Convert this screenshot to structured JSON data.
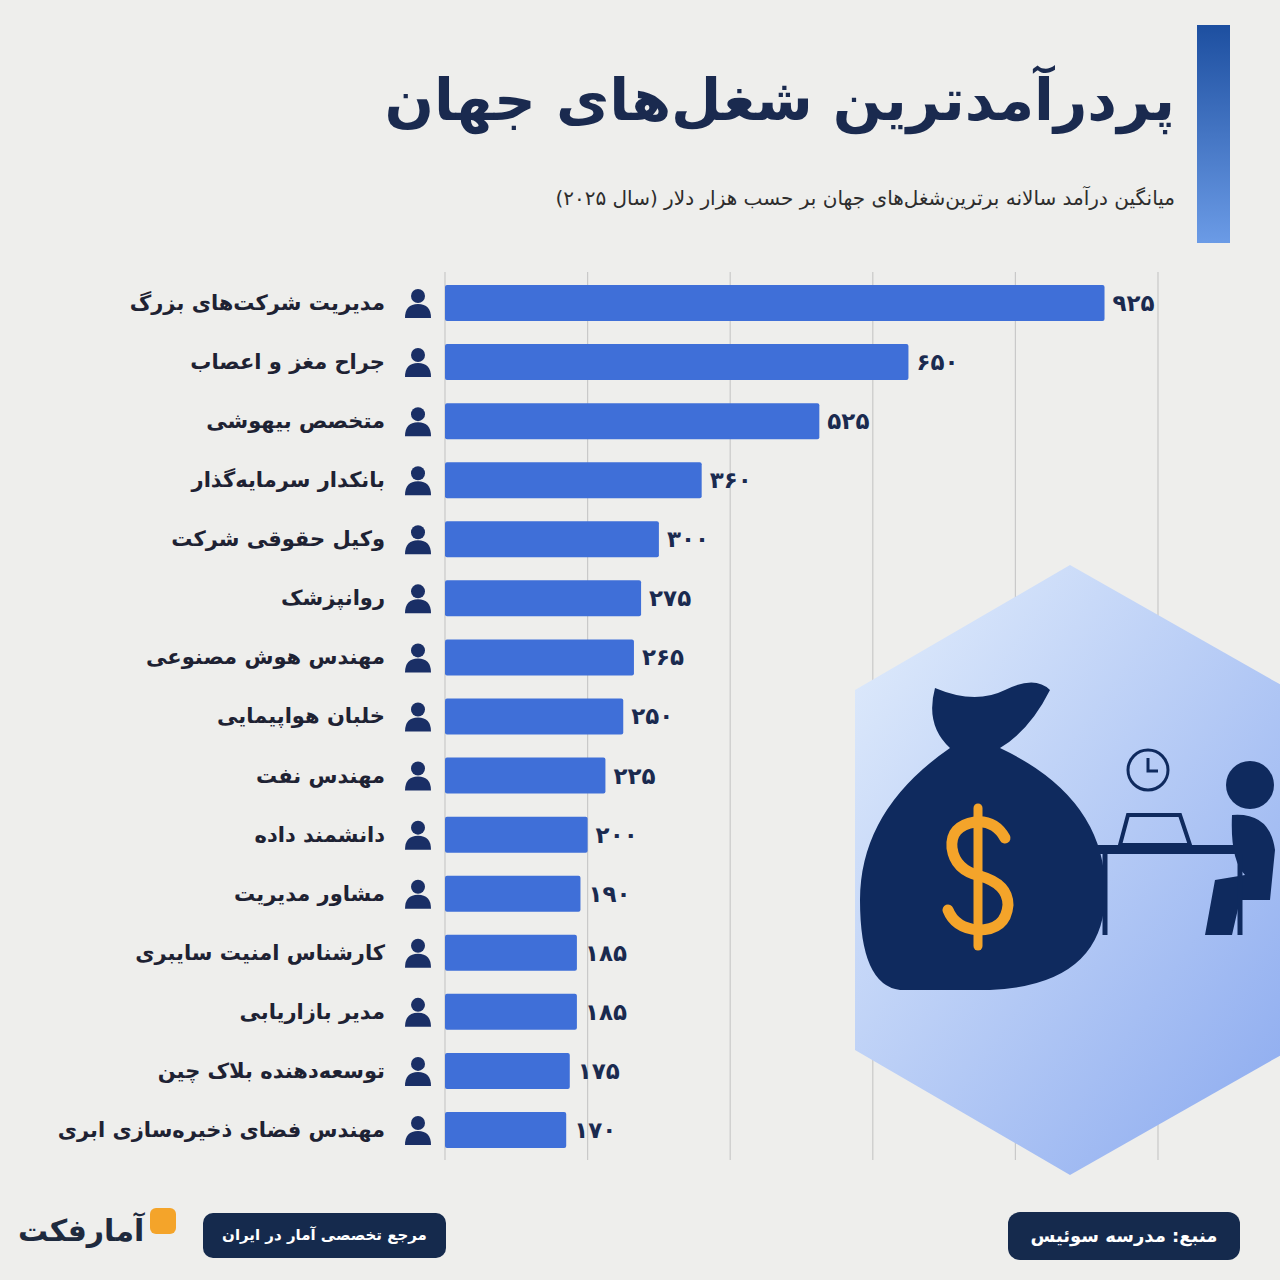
{
  "chart_data": {
    "type": "bar",
    "orientation": "horizontal",
    "title": "پردرآمدترین شغل‌های جهان",
    "subtitle": "میانگین درآمد سالانه برترین‌شغل‌های جهان بر حسب هزار دلار (سال ۲۰۲۵)",
    "categories": [
      "مدیریت شرکت‌های بزرگ",
      "جراح مغز و اعصاب",
      "متخصص بیهوشی",
      "بانکدار سرمایه‌گذار",
      "وکیل حقوقی شرکت",
      "روانپزشک",
      "مهندس هوش مصنوعی",
      "خلبان هواپیمایی",
      "مهندس نفت",
      "دانشمند داده",
      "مشاور مدیریت",
      "کارشناس امنیت سایبری",
      "مدیر بازاریابی",
      "توسعه‌دهنده بلاک چین",
      "مهندس فضای ذخیره‌سازی ابری"
    ],
    "values": [
      925,
      650,
      525,
      360,
      300,
      275,
      265,
      250,
      225,
      200,
      190,
      185,
      185,
      175,
      170
    ],
    "value_labels": [
      "۹۲۵",
      "۶۵۰",
      "۵۲۵",
      "۳۶۰",
      "۳۰۰",
      "۲۷۵",
      "۲۶۵",
      "۲۵۰",
      "۲۲۵",
      "۲۰۰",
      "۱۹۰",
      "۱۸۵",
      "۱۸۵",
      "۱۷۵",
      "۱۷۰"
    ],
    "color": "#3f6fd8",
    "xlim": [
      0,
      1000
    ],
    "xticks": [
      0,
      200,
      400,
      600,
      800,
      1000
    ],
    "grid": true,
    "data_labels": true,
    "tick_labels": false
  },
  "footer": {
    "source": "منبع: مدرسه سوئیس",
    "logo": "آمارفکت",
    "tagline": "مرجع تخصصی آمار در ایران"
  }
}
